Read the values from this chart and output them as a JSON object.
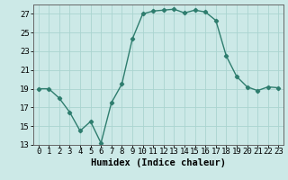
{
  "xlabel": "Humidex (Indice chaleur)",
  "x": [
    0,
    1,
    2,
    3,
    4,
    5,
    6,
    7,
    8,
    9,
    10,
    11,
    12,
    13,
    14,
    15,
    16,
    17,
    18,
    19,
    20,
    21,
    22,
    23
  ],
  "y": [
    19,
    19,
    18,
    16.5,
    14.5,
    15.5,
    13.2,
    17.5,
    19.5,
    24.3,
    27.0,
    27.3,
    27.4,
    27.5,
    27.1,
    27.4,
    27.2,
    26.3,
    22.5,
    20.3,
    19.2,
    18.8,
    19.2,
    19.1
  ],
  "line_color": "#2e7d6e",
  "marker": "D",
  "marker_size": 2.2,
  "bg_color": "#cce9e7",
  "grid_color": "#aad4d0",
  "ylim": [
    13,
    28
  ],
  "yticks": [
    13,
    15,
    17,
    19,
    21,
    23,
    25,
    27
  ],
  "xlim": [
    -0.5,
    23.5
  ],
  "xticks": [
    0,
    1,
    2,
    3,
    4,
    5,
    6,
    7,
    8,
    9,
    10,
    11,
    12,
    13,
    14,
    15,
    16,
    17,
    18,
    19,
    20,
    21,
    22,
    23
  ],
  "tick_fontsize": 6.5,
  "xlabel_fontsize": 7.5,
  "line_width": 1.0
}
